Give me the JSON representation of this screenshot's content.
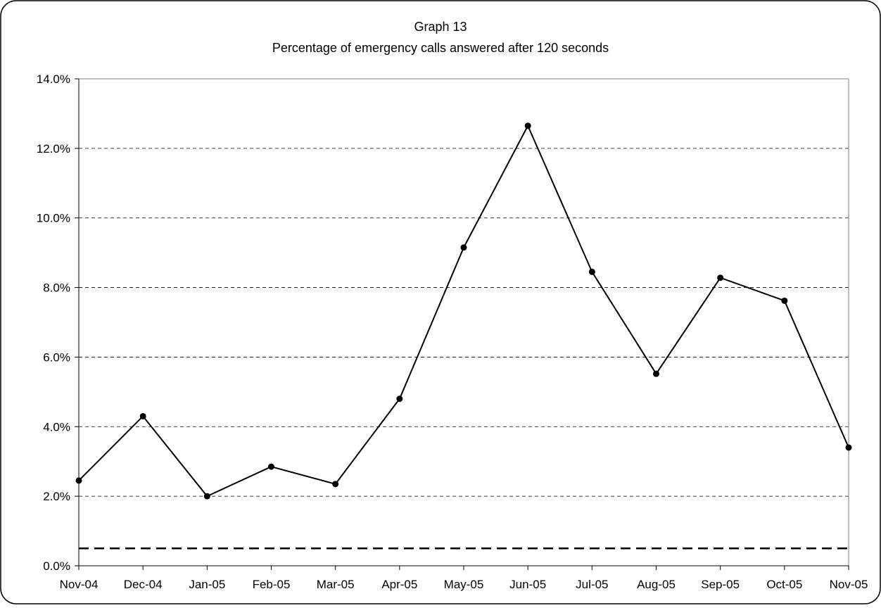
{
  "chart_data": {
    "type": "line",
    "title": "Graph 13",
    "subtitle": "Percentage of emergency calls answered after 120 seconds",
    "xlabel": "",
    "ylabel": "",
    "categories": [
      "Nov-04",
      "Dec-04",
      "Jan-05",
      "Feb-05",
      "Mar-05",
      "Apr-05",
      "May-05",
      "Jun-05",
      "Jul-05",
      "Aug-05",
      "Sep-05",
      "Oct-05",
      "Nov-05"
    ],
    "y_ticks": [
      "0.0%",
      "2.0%",
      "4.0%",
      "6.0%",
      "8.0%",
      "10.0%",
      "12.0%",
      "14.0%"
    ],
    "ylim": [
      0,
      14
    ],
    "y_unit": "%",
    "grid": "horizontal dashed",
    "legend": "none",
    "series": [
      {
        "values": [
          2.45,
          4.3,
          2.0,
          2.85,
          2.35,
          4.8,
          9.15,
          12.65,
          8.45,
          5.52,
          8.28,
          7.62,
          3.4
        ],
        "color": "#000000",
        "style": "solid line with circular markers"
      }
    ],
    "reference_lines": [
      {
        "value": 0.5,
        "style": "bold dashed",
        "color": "#000000"
      }
    ]
  }
}
